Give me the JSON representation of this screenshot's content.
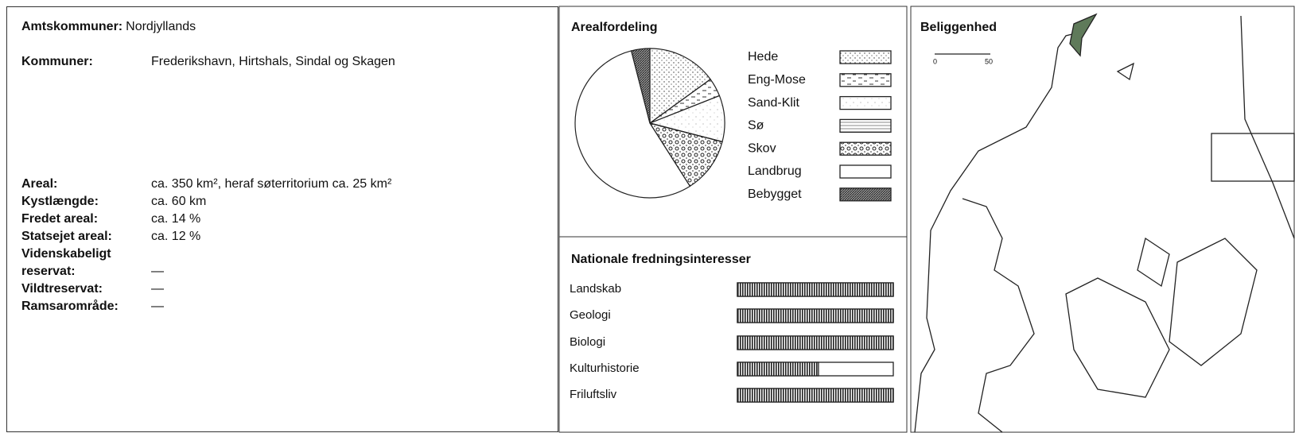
{
  "info": {
    "amt": {
      "label": "Amtskommuner:",
      "value": "Nordjyllands"
    },
    "kommuner": {
      "label": "Kommuner:",
      "value": "Frederikshavn, Hirtshals, Sindal og Skagen"
    },
    "facts": [
      {
        "label": "Areal:",
        "value": "ca. 350 km², heraf søterritorium ca. 25 km²"
      },
      {
        "label": "Kystlængde:",
        "value": "ca. 60 km"
      },
      {
        "label": "Fredet areal:",
        "value": "ca. 14 %"
      },
      {
        "label": "Statsejet areal:",
        "value": "ca. 12 %"
      },
      {
        "label": "Videnskabeligt reservat:",
        "value": "—"
      },
      {
        "label": "Vildtreservat:",
        "value": "—"
      },
      {
        "label": "Ramsarområde:",
        "value": "—"
      }
    ]
  },
  "chart_data": [
    {
      "type": "pie",
      "title": "Arealfordeling",
      "categories": [
        "Hede",
        "Eng-Mose",
        "Sand-Klit",
        "Sø",
        "Skov",
        "Landbrug",
        "Bebygget"
      ],
      "values": [
        15,
        4,
        10,
        0,
        12,
        55,
        4
      ]
    },
    {
      "type": "hbar",
      "title": "Nationale fredningsinteresser",
      "categories": [
        "Landskab",
        "Geologi",
        "Biologi",
        "Kulturhistorie",
        "Friluftsliv"
      ],
      "values": [
        100,
        100,
        100,
        52,
        100
      ],
      "xlim": [
        0,
        100
      ]
    }
  ],
  "map": {
    "title": "Beliggenhed",
    "scale": [
      "0",
      "50"
    ]
  }
}
